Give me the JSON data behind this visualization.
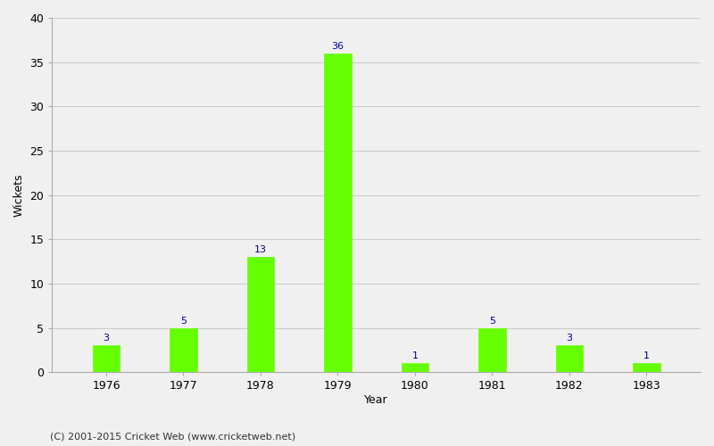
{
  "years": [
    "1976",
    "1977",
    "1978",
    "1979",
    "1980",
    "1981",
    "1982",
    "1983"
  ],
  "values": [
    3,
    5,
    13,
    36,
    1,
    5,
    3,
    1
  ],
  "bar_color": "#66ff00",
  "bar_edge_color": "#66ff00",
  "label_color": "#000099",
  "ylabel": "Wickets",
  "xlabel": "Year",
  "ylim": [
    0,
    40
  ],
  "yticks": [
    0,
    5,
    10,
    15,
    20,
    25,
    30,
    35,
    40
  ],
  "grid_color": "#cccccc",
  "bg_color": "#f0f0f0",
  "footer": "(C) 2001-2015 Cricket Web (www.cricketweb.net)",
  "label_fontsize": 8,
  "axis_fontsize": 9,
  "footer_fontsize": 8,
  "bar_width": 0.35
}
